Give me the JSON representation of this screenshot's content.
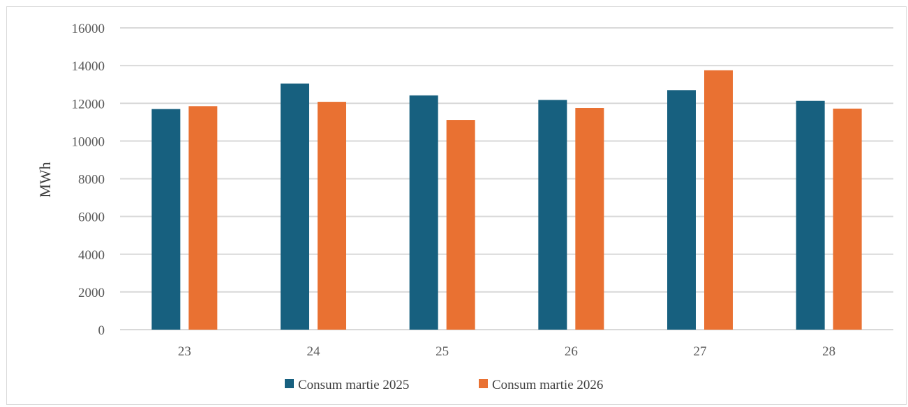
{
  "chart_data": {
    "type": "bar",
    "categories": [
      "23",
      "24",
      "25",
      "26",
      "27",
      "28"
    ],
    "series": [
      {
        "name": "Consum martie 2025",
        "color": "#17607f",
        "values": [
          11700,
          13050,
          12420,
          12180,
          12700,
          12130
        ]
      },
      {
        "name": "Consum martie 2026",
        "color": "#e97132",
        "values": [
          11850,
          12080,
          11120,
          11750,
          13750,
          11720
        ]
      }
    ],
    "title": "",
    "xlabel": "",
    "ylabel": "MWh",
    "ylim": [
      0,
      16000
    ],
    "yticks": [
      0,
      2000,
      4000,
      6000,
      8000,
      10000,
      12000,
      14000,
      16000
    ],
    "grid": true,
    "legend_position": "bottom"
  }
}
